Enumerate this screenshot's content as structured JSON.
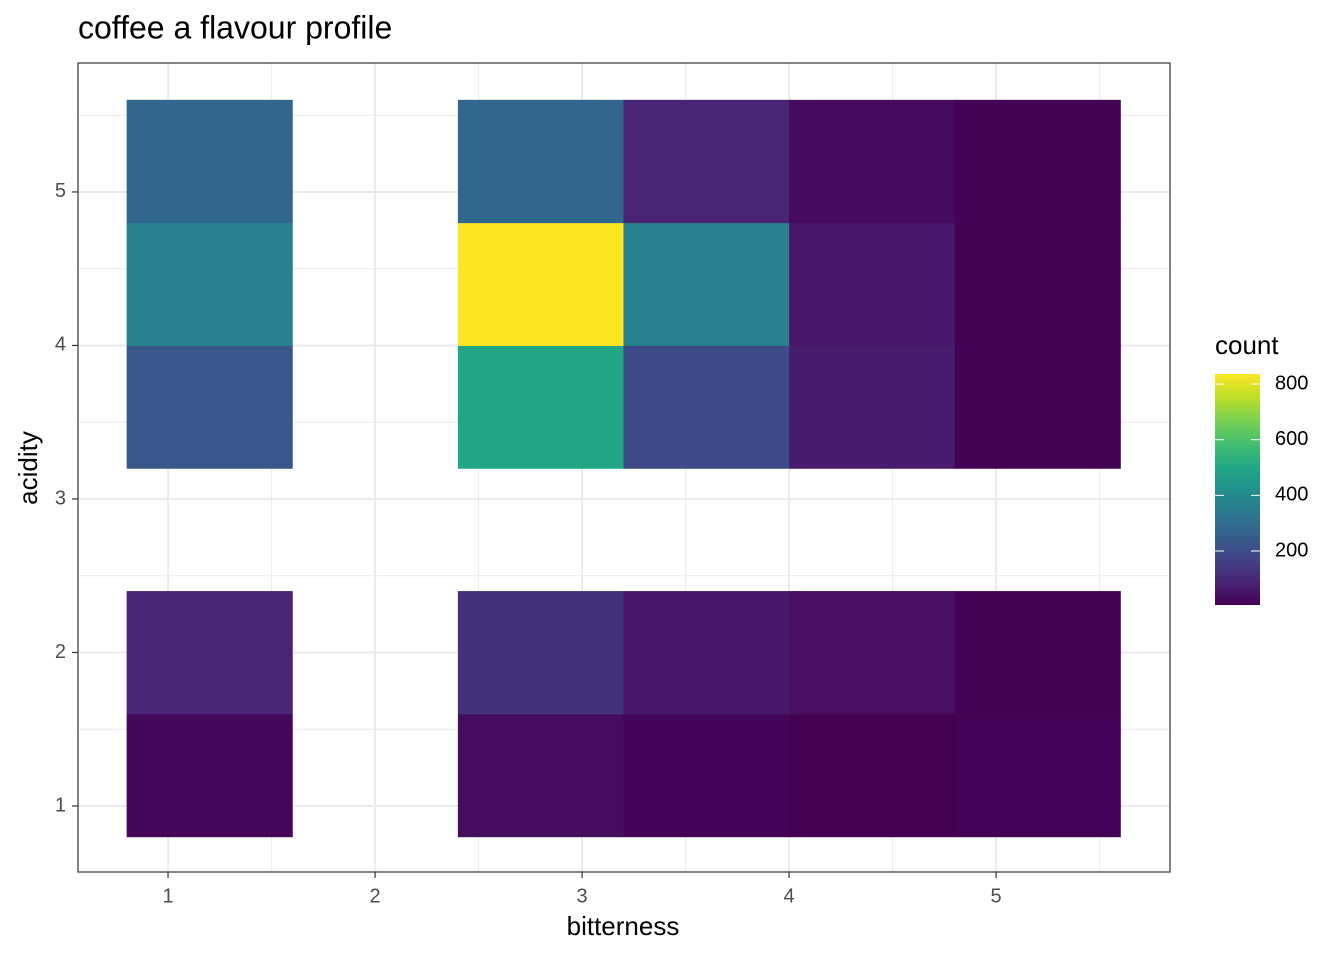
{
  "chart_data": {
    "type": "heatmap",
    "title": "coffee a flavour profile",
    "x_label": "bitterness",
    "y_label": "acidity",
    "xbins": [
      0.8,
      1.6,
      2.4,
      3.2,
      4.0,
      4.8,
      5.6
    ],
    "ybins": [
      0.8,
      1.6,
      2.4,
      3.2,
      4.0,
      4.8,
      5.6
    ],
    "values": [
      [
        20,
        null,
        35,
        15,
        6,
        10
      ],
      [
        90,
        null,
        120,
        60,
        40,
        8
      ],
      [
        null,
        null,
        null,
        null,
        null,
        null
      ],
      [
        230,
        null,
        500,
        190,
        70,
        8
      ],
      [
        370,
        null,
        836,
        360,
        60,
        8
      ],
      [
        280,
        null,
        280,
        90,
        30,
        8
      ]
    ],
    "xlim": [
      0.565,
      5.84
    ],
    "ylim": [
      0.57,
      5.84
    ],
    "xticks": [
      1,
      2,
      3,
      4,
      5
    ],
    "yticks": [
      1,
      2,
      3,
      4,
      5
    ],
    "grid": true,
    "colormap": "viridis",
    "legend_title": "count",
    "colorbar_lim": [
      6,
      836
    ],
    "colorbar_ticks": [
      200,
      400,
      600,
      800
    ]
  }
}
